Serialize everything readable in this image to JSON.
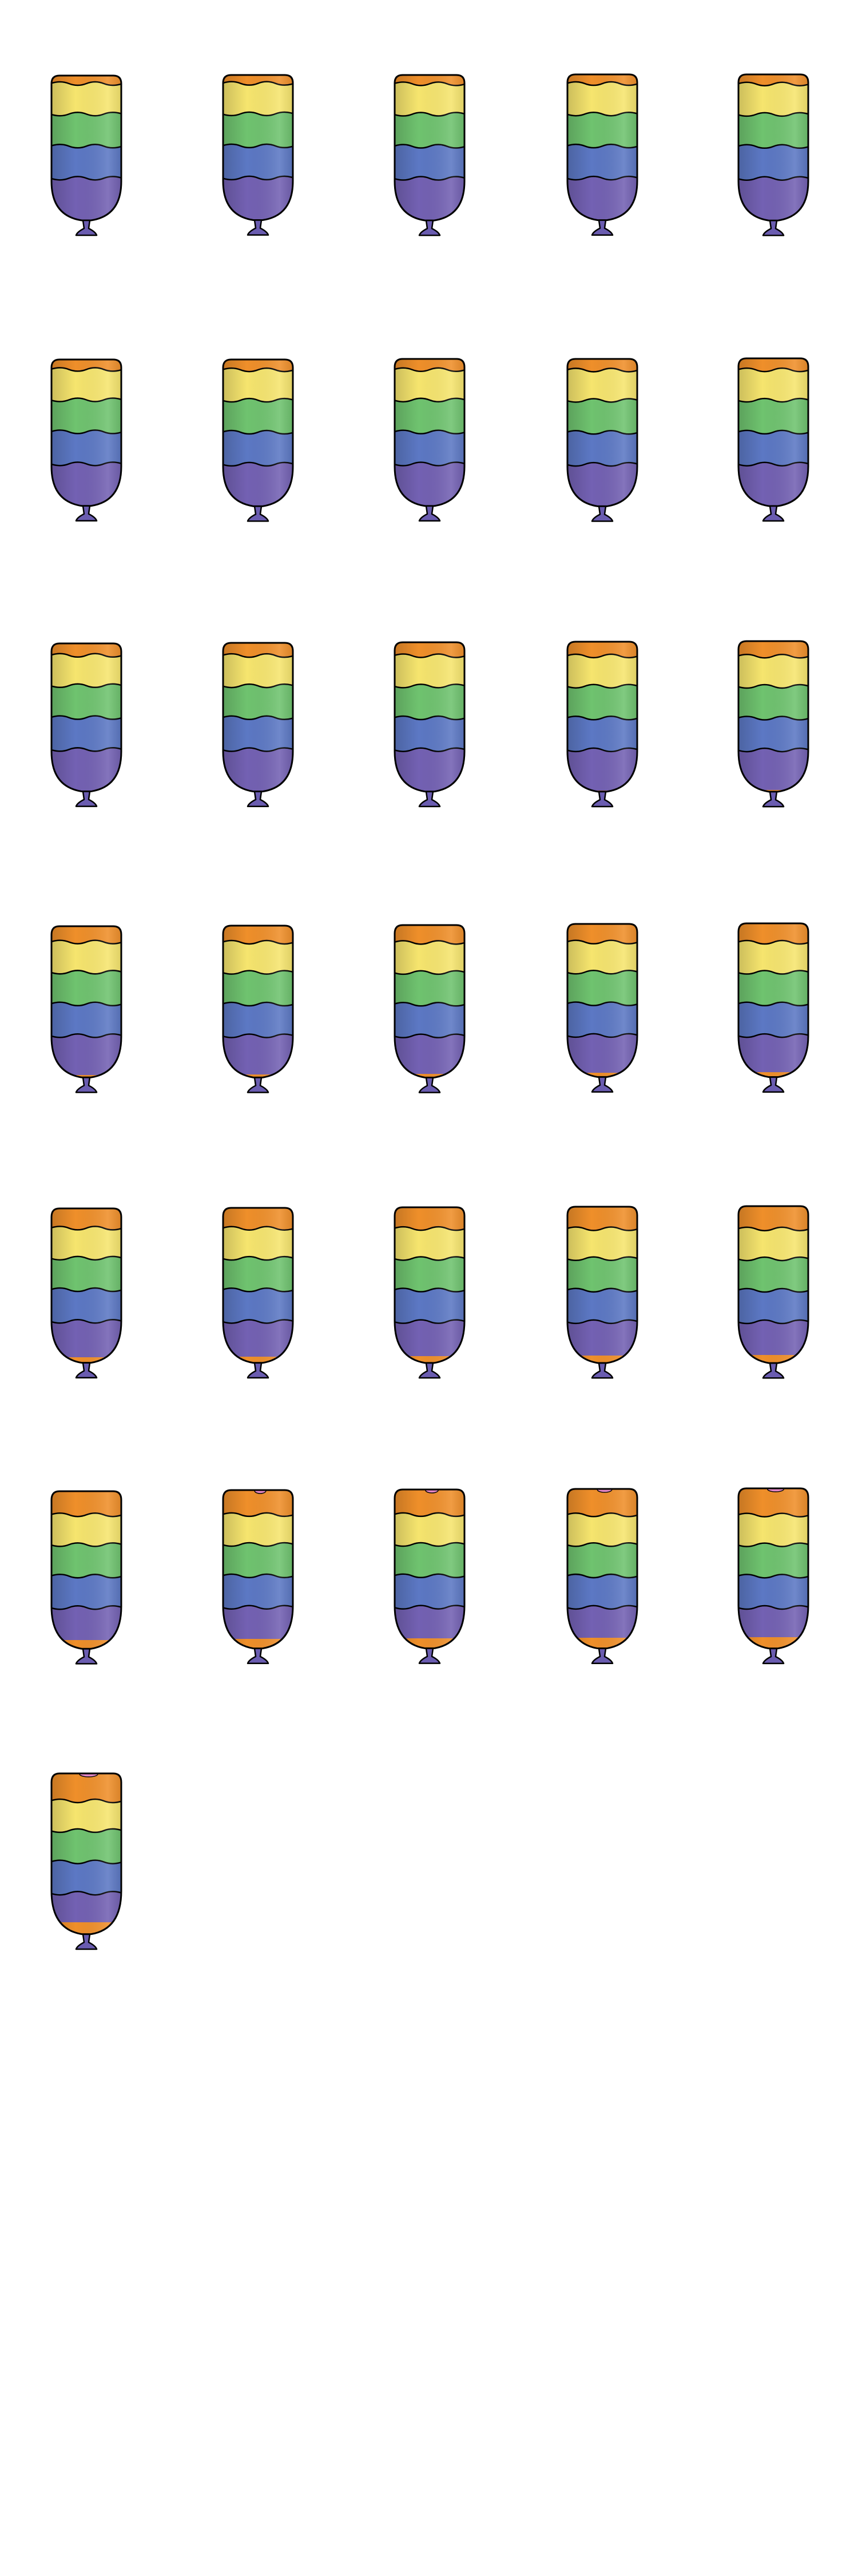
{
  "sprite_sheet": {
    "columns": 5,
    "frame_count": 31,
    "frames": [
      {
        "fill": 0.0
      },
      {
        "fill": 0.02
      },
      {
        "fill": 0.04
      },
      {
        "fill": 0.06
      },
      {
        "fill": 0.08
      },
      {
        "fill": 0.1
      },
      {
        "fill": 0.12
      },
      {
        "fill": 0.14
      },
      {
        "fill": 0.16
      },
      {
        "fill": 0.18
      },
      {
        "fill": 0.2
      },
      {
        "fill": 0.24
      },
      {
        "fill": 0.28
      },
      {
        "fill": 0.32
      },
      {
        "fill": 0.36
      },
      {
        "fill": 0.4
      },
      {
        "fill": 0.44
      },
      {
        "fill": 0.48
      },
      {
        "fill": 0.52
      },
      {
        "fill": 0.56
      },
      {
        "fill": 0.6
      },
      {
        "fill": 0.64
      },
      {
        "fill": 0.68
      },
      {
        "fill": 0.72
      },
      {
        "fill": 0.76
      },
      {
        "fill": 0.8
      },
      {
        "fill": 0.85
      },
      {
        "fill": 0.88
      },
      {
        "fill": 0.92
      },
      {
        "fill": 0.96
      },
      {
        "fill": 1.0
      }
    ],
    "colors": {
      "pink": "#e987c9",
      "orange": "#ef8f2a",
      "yellow": "#f6e56e",
      "green": "#6fc36f",
      "blue": "#5c78c4",
      "purple": "#7361b3",
      "knot": "#6a5cb0",
      "outline": "#000000",
      "background": "#ffffff"
    }
  }
}
